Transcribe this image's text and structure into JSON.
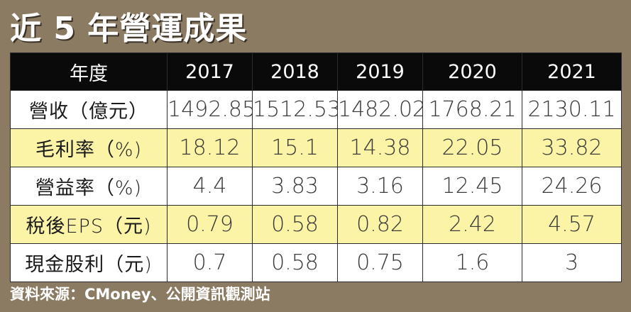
{
  "title": "近 5 年營運成果",
  "source": "資料來源：CMoney、公開資訊觀測站",
  "colors": {
    "background": "#8b7b63",
    "header": "#0a0a0a",
    "highlight_row": "#fbf3a6",
    "row": "#ffffff"
  },
  "chart_data": {
    "type": "table",
    "title": "近 5 年營運成果",
    "columns": [
      "年度",
      "2017",
      "2018",
      "2019",
      "2020",
      "2021"
    ],
    "rows": [
      {
        "label": "營收（億元）",
        "values": [
          "1492.85",
          "1512.53",
          "1482.02",
          "1768.21",
          "2130.11"
        ],
        "highlight": false
      },
      {
        "label": "毛利率（%)",
        "values": [
          "18.12",
          "15.1",
          "14.38",
          "22.05",
          "33.82"
        ],
        "highlight": true
      },
      {
        "label": "營益率（%)",
        "values": [
          "4.4",
          "3.83",
          "3.16",
          "12.45",
          "24.26"
        ],
        "highlight": false
      },
      {
        "label": "稅後EPS（元)",
        "values": [
          "0.79",
          "0.58",
          "0.82",
          "2.42",
          "4.57"
        ],
        "highlight": true
      },
      {
        "label": "現金股利（元)",
        "values": [
          "0.7",
          "0.58",
          "0.75",
          "1.6",
          "3"
        ],
        "highlight": false
      }
    ],
    "source": "資料來源：CMoney、公開資訊觀測站"
  }
}
